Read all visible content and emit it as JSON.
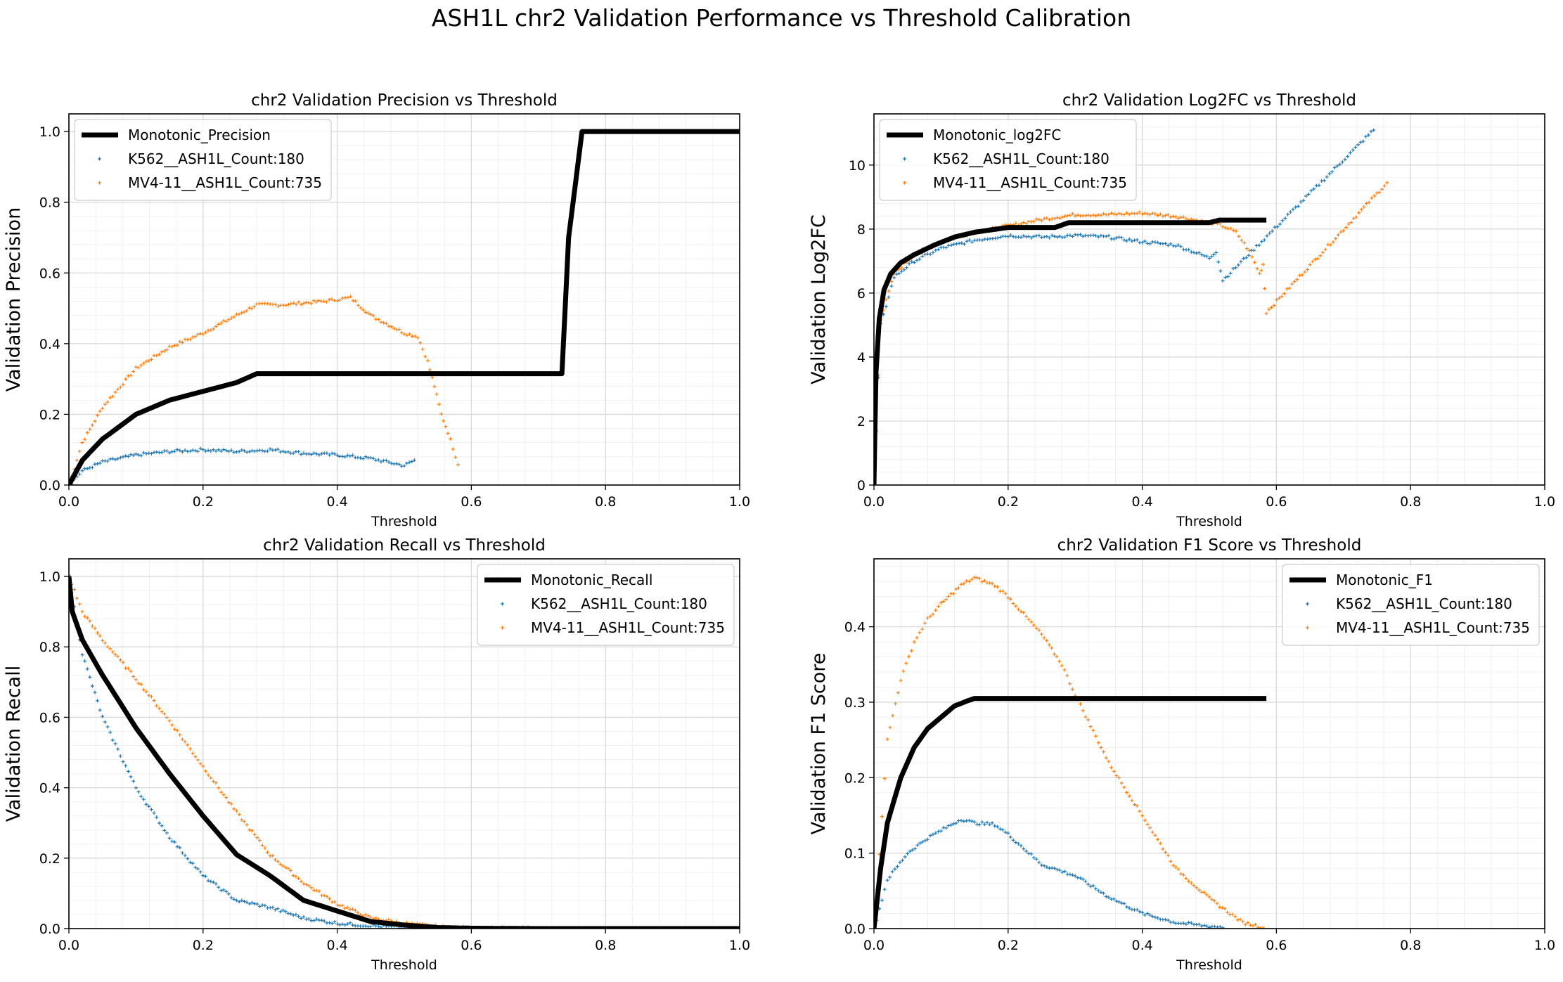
{
  "suptitle": "ASH1L chr2 Validation Performance vs Threshold Calibration",
  "colors": {
    "monotonic": "#000000",
    "k562": "#1f77b4",
    "mv4": "#ff7f0e",
    "grid": "#d9d9d9"
  },
  "chart_data": [
    {
      "type": "scatter",
      "title": "chr2 Validation Precision vs Threshold",
      "xlabel": "Threshold",
      "ylabel": "Validation Precision",
      "xlim": [
        0,
        1
      ],
      "ylim": [
        0,
        1.05
      ],
      "xticks": [
        0,
        0.2,
        0.4,
        0.6,
        0.8,
        1.0
      ],
      "xtick_labels": [
        "0.0",
        "0.2",
        "0.4",
        "0.6",
        "0.8",
        "1.0"
      ],
      "yticks": [
        0,
        0.2,
        0.4,
        0.6,
        0.8,
        1.0
      ],
      "ytick_labels": [
        "0.0",
        "0.2",
        "0.4",
        "0.6",
        "0.8",
        "1.0"
      ],
      "grid": true,
      "legend_position": "top-left",
      "series": [
        {
          "name": "Monotonic_Precision",
          "kind": "line",
          "x": [
            0,
            0.02,
            0.05,
            0.1,
            0.15,
            0.2,
            0.25,
            0.28,
            0.3,
            0.4,
            0.5,
            0.6,
            0.7,
            0.735,
            0.745,
            0.755,
            0.765,
            0.8,
            0.9,
            1.0
          ],
          "y": [
            0,
            0.07,
            0.13,
            0.2,
            0.24,
            0.265,
            0.29,
            0.315,
            0.315,
            0.315,
            0.315,
            0.315,
            0.315,
            0.315,
            0.7,
            0.85,
            1.0,
            1.0,
            1.0,
            1.0
          ]
        },
        {
          "name": "K562__ASH1L_Count:180",
          "kind": "scatter",
          "x": [
            0,
            0.02,
            0.05,
            0.1,
            0.15,
            0.2,
            0.25,
            0.3,
            0.35,
            0.4,
            0.45,
            0.5,
            0.515
          ],
          "y": [
            0,
            0.04,
            0.065,
            0.085,
            0.095,
            0.1,
            0.095,
            0.1,
            0.09,
            0.085,
            0.075,
            0.055,
            0.07
          ]
        },
        {
          "name": "MV4-11__ASH1L_Count:735",
          "kind": "scatter",
          "x": [
            0,
            0.02,
            0.05,
            0.1,
            0.15,
            0.2,
            0.25,
            0.28,
            0.32,
            0.38,
            0.42,
            0.45,
            0.5,
            0.52,
            0.535,
            0.545,
            0.555,
            0.565,
            0.58
          ],
          "y": [
            0,
            0.12,
            0.22,
            0.33,
            0.39,
            0.43,
            0.48,
            0.51,
            0.51,
            0.52,
            0.53,
            0.48,
            0.43,
            0.42,
            0.35,
            0.28,
            0.2,
            0.15,
            0.06
          ]
        }
      ]
    },
    {
      "type": "scatter",
      "title": "chr2 Validation Log2FC vs Threshold",
      "xlabel": "Threshold",
      "ylabel": "Validation Log2FC",
      "xlim": [
        0,
        1
      ],
      "ylim": [
        0,
        11.6
      ],
      "xticks": [
        0,
        0.2,
        0.4,
        0.6,
        0.8,
        1.0
      ],
      "xtick_labels": [
        "0.0",
        "0.2",
        "0.4",
        "0.6",
        "0.8",
        "1.0"
      ],
      "yticks": [
        0,
        2,
        4,
        6,
        8,
        10
      ],
      "ytick_labels": [
        "0",
        "2",
        "4",
        "6",
        "8",
        "10"
      ],
      "grid": true,
      "legend_position": "top-left",
      "series": [
        {
          "name": "Monotonic_log2FC",
          "kind": "line",
          "x": [
            0,
            0.003,
            0.008,
            0.015,
            0.025,
            0.04,
            0.06,
            0.09,
            0.12,
            0.15,
            0.2,
            0.27,
            0.29,
            0.4,
            0.5,
            0.515,
            0.585
          ],
          "y": [
            0,
            3.5,
            5.2,
            6.1,
            6.6,
            6.95,
            7.2,
            7.5,
            7.75,
            7.9,
            8.05,
            8.05,
            8.2,
            8.2,
            8.2,
            8.28,
            8.28
          ]
        },
        {
          "name": "K562__ASH1L_Count:180",
          "kind": "scatter",
          "x": [
            0,
            0.01,
            0.03,
            0.06,
            0.1,
            0.15,
            0.2,
            0.25,
            0.3,
            0.35,
            0.4,
            0.45,
            0.5,
            0.51,
            0.52,
            0.745
          ],
          "y": [
            0,
            5.0,
            6.5,
            7.0,
            7.4,
            7.65,
            7.8,
            7.75,
            7.8,
            7.75,
            7.6,
            7.5,
            7.1,
            7.3,
            6.4,
            11.1
          ]
        },
        {
          "name": "MV4-11__ASH1L_Count:735",
          "kind": "scatter",
          "x": [
            0,
            0.01,
            0.03,
            0.06,
            0.1,
            0.15,
            0.2,
            0.25,
            0.3,
            0.35,
            0.4,
            0.45,
            0.5,
            0.52,
            0.54,
            0.56,
            0.575,
            0.58,
            0.585,
            0.765
          ],
          "y": [
            0,
            5.2,
            6.6,
            7.2,
            7.6,
            7.9,
            8.1,
            8.3,
            8.45,
            8.45,
            8.5,
            8.4,
            8.2,
            8.1,
            7.9,
            7.3,
            6.6,
            6.9,
            5.4,
            9.45
          ]
        }
      ]
    },
    {
      "type": "scatter",
      "title": "chr2 Validation Recall vs Threshold",
      "xlabel": "Threshold",
      "ylabel": "Validation Recall",
      "xlim": [
        0,
        1
      ],
      "ylim": [
        0,
        1.05
      ],
      "xticks": [
        0,
        0.2,
        0.4,
        0.6,
        0.8,
        1.0
      ],
      "xtick_labels": [
        "0.0",
        "0.2",
        "0.4",
        "0.6",
        "0.8",
        "1.0"
      ],
      "yticks": [
        0,
        0.2,
        0.4,
        0.6,
        0.8,
        1.0
      ],
      "ytick_labels": [
        "0.0",
        "0.2",
        "0.4",
        "0.6",
        "0.8",
        "1.0"
      ],
      "grid": true,
      "legend_position": "top-right",
      "series": [
        {
          "name": "Monotonic_Recall",
          "kind": "line",
          "x": [
            0,
            0.005,
            0.02,
            0.05,
            0.1,
            0.15,
            0.2,
            0.25,
            0.3,
            0.35,
            0.4,
            0.45,
            0.5,
            0.55,
            0.6,
            0.7,
            0.8,
            0.9,
            1.0
          ],
          "y": [
            1.0,
            0.9,
            0.82,
            0.72,
            0.57,
            0.44,
            0.32,
            0.21,
            0.15,
            0.08,
            0.05,
            0.02,
            0.01,
            0.003,
            0.001,
            0,
            0,
            0,
            0
          ]
        },
        {
          "name": "K562__ASH1L_Count:180",
          "kind": "scatter",
          "x": [
            0,
            0.02,
            0.05,
            0.1,
            0.15,
            0.2,
            0.25,
            0.3,
            0.35,
            0.4,
            0.45,
            0.5,
            0.55
          ],
          "y": [
            1.0,
            0.78,
            0.6,
            0.4,
            0.26,
            0.15,
            0.08,
            0.06,
            0.03,
            0.015,
            0.008,
            0.003,
            0.001
          ]
        },
        {
          "name": "MV4-11__ASH1L_Count:735",
          "kind": "scatter",
          "x": [
            0,
            0.02,
            0.05,
            0.1,
            0.15,
            0.2,
            0.25,
            0.3,
            0.35,
            0.4,
            0.45,
            0.5,
            0.55,
            0.6,
            0.7
          ],
          "y": [
            1.0,
            0.9,
            0.82,
            0.71,
            0.59,
            0.46,
            0.33,
            0.21,
            0.13,
            0.07,
            0.03,
            0.015,
            0.005,
            0.001,
            0
          ]
        }
      ]
    },
    {
      "type": "scatter",
      "title": "chr2 Validation F1 Score vs Threshold",
      "xlabel": "Threshold",
      "ylabel": "Validation F1 Score",
      "xlim": [
        0,
        1
      ],
      "ylim": [
        0,
        0.49
      ],
      "xticks": [
        0,
        0.2,
        0.4,
        0.6,
        0.8,
        1.0
      ],
      "xtick_labels": [
        "0.0",
        "0.2",
        "0.4",
        "0.6",
        "0.8",
        "1.0"
      ],
      "yticks": [
        0,
        0.1,
        0.2,
        0.3,
        0.4
      ],
      "ytick_labels": [
        "0.0",
        "0.1",
        "0.2",
        "0.3",
        "0.4"
      ],
      "grid": true,
      "legend_position": "top-right",
      "series": [
        {
          "name": "Monotonic_F1",
          "kind": "line",
          "x": [
            0,
            0.01,
            0.02,
            0.04,
            0.06,
            0.08,
            0.1,
            0.12,
            0.14,
            0.15,
            0.2,
            0.3,
            0.4,
            0.5,
            0.585
          ],
          "y": [
            0,
            0.08,
            0.14,
            0.2,
            0.24,
            0.265,
            0.28,
            0.295,
            0.302,
            0.305,
            0.305,
            0.305,
            0.305,
            0.305,
            0.305
          ]
        },
        {
          "name": "K562__ASH1L_Count:180",
          "kind": "scatter",
          "x": [
            0,
            0.02,
            0.05,
            0.08,
            0.1,
            0.13,
            0.15,
            0.18,
            0.2,
            0.25,
            0.3,
            0.35,
            0.4,
            0.45,
            0.5,
            0.52
          ],
          "y": [
            0,
            0.065,
            0.1,
            0.12,
            0.13,
            0.145,
            0.14,
            0.138,
            0.125,
            0.085,
            0.07,
            0.042,
            0.02,
            0.008,
            0.003,
            0.002
          ]
        },
        {
          "name": "MV4-11__ASH1L_Count:735",
          "kind": "scatter",
          "x": [
            0,
            0.02,
            0.04,
            0.06,
            0.08,
            0.1,
            0.13,
            0.15,
            0.18,
            0.2,
            0.25,
            0.28,
            0.3,
            0.35,
            0.4,
            0.45,
            0.5,
            0.55,
            0.58
          ],
          "y": [
            0,
            0.25,
            0.33,
            0.38,
            0.41,
            0.43,
            0.455,
            0.465,
            0.455,
            0.44,
            0.39,
            0.35,
            0.31,
            0.22,
            0.15,
            0.08,
            0.04,
            0.008,
            0.002
          ]
        }
      ]
    }
  ]
}
